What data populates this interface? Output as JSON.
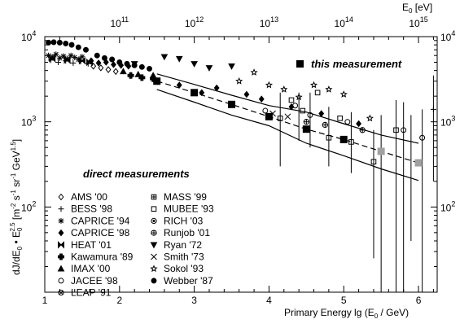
{
  "chart_data": {
    "type": "scatter",
    "title": "",
    "xlabel": "Primary Energy lg (E0 / GeV)",
    "xlabel_parts": {
      "prefix": "Primary Energy lg (E",
      "sub": "0",
      "suffix": " / GeV)"
    },
    "ylabel_parts": {
      "a": "dJ/dE",
      "a_sub": "0",
      "dot": " • E",
      "b_sub": "0",
      "b_sup": "2.5",
      "unit_open": " [m",
      "exp1": "-2",
      "mid1": " s",
      "exp2": "-1",
      "mid2": " sr",
      "exp3": "-1",
      "mid3": " GeV",
      "exp4": "1.5",
      "unit_close": "]"
    },
    "top_axis_label_parts": {
      "base": "E",
      "sub": "0",
      "unit": " [eV]"
    },
    "xlim": [
      1,
      6.25
    ],
    "ylim_log10": [
      1,
      4
    ],
    "y_scale": "log",
    "x_ticks": [
      "1",
      "2",
      "3",
      "4",
      "5",
      "6"
    ],
    "x_tick_values": [
      1,
      2,
      3,
      4,
      5,
      6
    ],
    "y_ticks": [
      {
        "base": "10",
        "exp": "4",
        "value": 4
      },
      {
        "base": "10",
        "exp": "3",
        "value": 3
      },
      {
        "base": "10",
        "exp": "2",
        "value": 2
      }
    ],
    "top_ticks": [
      {
        "base": "10",
        "exp": "11",
        "value": 2
      },
      {
        "base": "10",
        "exp": "12",
        "value": 3
      },
      {
        "base": "10",
        "exp": "13",
        "value": 4
      },
      {
        "base": "10",
        "exp": "14",
        "value": 5
      },
      {
        "base": "10",
        "exp": "15",
        "value": 6
      }
    ],
    "annotations": {
      "this_measurement": "this measurement",
      "direct_measurements": "direct measurements"
    },
    "legend_left": [
      {
        "label": "AMS '00",
        "marker": "diamond-open"
      },
      {
        "label": "BESS '98",
        "marker": "plus"
      },
      {
        "label": "CAPRICE '94",
        "marker": "asterisk"
      },
      {
        "label": "CAPRICE '98",
        "marker": "diamond-filled"
      },
      {
        "label": "HEAT '01",
        "marker": "bowtie"
      },
      {
        "label": "Kawamura '89",
        "marker": "cross-filled"
      },
      {
        "label": "IMAX '00",
        "marker": "triangle-up-filled"
      },
      {
        "label": "JACEE '98",
        "marker": "circle-open"
      },
      {
        "label": "LEAP '91",
        "marker": "circle-x"
      }
    ],
    "legend_right": [
      {
        "label": "MASS '99",
        "marker": "square-plus"
      },
      {
        "label": "MUBEE '93",
        "marker": "square-open"
      },
      {
        "label": "RICH '03",
        "marker": "circle-dot"
      },
      {
        "label": "Runjob '01",
        "marker": "circle-plus"
      },
      {
        "label": "Ryan '72",
        "marker": "triangle-down-filled"
      },
      {
        "label": "Smith '73",
        "marker": "x"
      },
      {
        "label": "Sokol '93",
        "marker": "star-open"
      },
      {
        "label": "Webber '87",
        "marker": "circle-filled"
      }
    ],
    "this_measurement_series": {
      "name": "this measurement",
      "marker": "square-filled",
      "points": [
        {
          "x": 2.5,
          "y": 3000
        },
        {
          "x": 3.0,
          "y": 2200
        },
        {
          "x": 3.5,
          "y": 1600
        },
        {
          "x": 4.0,
          "y": 1150
        },
        {
          "x": 4.5,
          "y": 820
        },
        {
          "x": 5.0,
          "y": 620
        }
      ],
      "gray_points": [
        {
          "x": 5.5,
          "y": 450
        },
        {
          "x": 6.0,
          "y": 330
        }
      ]
    },
    "band": {
      "upper": [
        [
          2.5,
          3650
        ],
        [
          3.0,
          2750
        ],
        [
          3.5,
          2050
        ],
        [
          4.0,
          1550
        ],
        [
          4.5,
          1300
        ],
        [
          5.0,
          950
        ],
        [
          5.5,
          700
        ],
        [
          6.0,
          560
        ]
      ],
      "central": [
        [
          2.5,
          3000
        ],
        [
          3.0,
          2200
        ],
        [
          3.5,
          1600
        ],
        [
          4.0,
          1150
        ],
        [
          4.5,
          820
        ],
        [
          5.0,
          620
        ],
        [
          5.5,
          450
        ],
        [
          6.0,
          330
        ]
      ],
      "lower": [
        [
          2.5,
          2400
        ],
        [
          3.0,
          1700
        ],
        [
          3.5,
          1200
        ],
        [
          4.0,
          900
        ],
        [
          4.5,
          560
        ],
        [
          5.0,
          400
        ],
        [
          5.5,
          280
        ],
        [
          6.0,
          205
        ]
      ]
    },
    "direct_points": [
      {
        "x": 1.05,
        "y": 8500,
        "marker": "circle-filled"
      },
      {
        "x": 1.12,
        "y": 8600,
        "marker": "circle-filled"
      },
      {
        "x": 1.2,
        "y": 8500,
        "marker": "circle-filled"
      },
      {
        "x": 1.28,
        "y": 8300,
        "marker": "circle-filled"
      },
      {
        "x": 1.36,
        "y": 8000,
        "marker": "circle-filled"
      },
      {
        "x": 1.45,
        "y": 7500,
        "marker": "circle-filled"
      },
      {
        "x": 1.55,
        "y": 7000,
        "marker": "circle-filled"
      },
      {
        "x": 1.05,
        "y": 6000,
        "marker": "asterisk"
      },
      {
        "x": 1.1,
        "y": 5800,
        "marker": "asterisk"
      },
      {
        "x": 1.15,
        "y": 6200,
        "marker": "asterisk"
      },
      {
        "x": 1.2,
        "y": 5600,
        "marker": "asterisk"
      },
      {
        "x": 1.25,
        "y": 5900,
        "marker": "asterisk"
      },
      {
        "x": 1.3,
        "y": 5500,
        "marker": "asterisk"
      },
      {
        "x": 1.35,
        "y": 6000,
        "marker": "asterisk"
      },
      {
        "x": 1.4,
        "y": 5700,
        "marker": "asterisk"
      },
      {
        "x": 1.45,
        "y": 5400,
        "marker": "asterisk"
      },
      {
        "x": 1.5,
        "y": 5800,
        "marker": "asterisk"
      },
      {
        "x": 1.08,
        "y": 5300,
        "marker": "plus"
      },
      {
        "x": 1.18,
        "y": 5000,
        "marker": "plus"
      },
      {
        "x": 1.28,
        "y": 5200,
        "marker": "plus"
      },
      {
        "x": 1.38,
        "y": 4900,
        "marker": "plus"
      },
      {
        "x": 1.48,
        "y": 5100,
        "marker": "plus"
      },
      {
        "x": 1.58,
        "y": 4800,
        "marker": "plus"
      },
      {
        "x": 1.1,
        "y": 5500,
        "marker": "bowtie"
      },
      {
        "x": 1.3,
        "y": 5300,
        "marker": "bowtie"
      },
      {
        "x": 1.5,
        "y": 5200,
        "marker": "bowtie"
      },
      {
        "x": 1.6,
        "y": 5000,
        "marker": "bowtie"
      },
      {
        "x": 1.62,
        "y": 5200,
        "marker": "diamond-filled"
      },
      {
        "x": 1.72,
        "y": 4900,
        "marker": "diamond-filled"
      },
      {
        "x": 1.82,
        "y": 5000,
        "marker": "diamond-filled"
      },
      {
        "x": 1.92,
        "y": 4700,
        "marker": "diamond-filled"
      },
      {
        "x": 2.02,
        "y": 4600,
        "marker": "diamond-filled"
      },
      {
        "x": 2.12,
        "y": 4500,
        "marker": "diamond-filled"
      },
      {
        "x": 1.65,
        "y": 4500,
        "marker": "diamond-open"
      },
      {
        "x": 1.75,
        "y": 4300,
        "marker": "diamond-open"
      },
      {
        "x": 1.85,
        "y": 4100,
        "marker": "diamond-open"
      },
      {
        "x": 1.95,
        "y": 3900,
        "marker": "diamond-open"
      },
      {
        "x": 1.7,
        "y": 6000,
        "marker": "circle-filled"
      },
      {
        "x": 1.8,
        "y": 5600,
        "marker": "circle-filled"
      },
      {
        "x": 1.9,
        "y": 5400,
        "marker": "circle-filled"
      },
      {
        "x": 2.0,
        "y": 5000,
        "marker": "circle-filled"
      },
      {
        "x": 2.1,
        "y": 4800,
        "marker": "circle-filled"
      },
      {
        "x": 2.2,
        "y": 4600,
        "marker": "circle-filled"
      },
      {
        "x": 2.3,
        "y": 4400,
        "marker": "circle-filled"
      },
      {
        "x": 2.4,
        "y": 4200,
        "marker": "circle-filled"
      },
      {
        "x": 2.15,
        "y": 3500,
        "marker": "cross-filled"
      },
      {
        "x": 2.3,
        "y": 3300,
        "marker": "cross-filled"
      },
      {
        "x": 2.45,
        "y": 3200,
        "marker": "cross-filled"
      },
      {
        "x": 2.05,
        "y": 3900,
        "marker": "triangle-up-filled"
      },
      {
        "x": 2.25,
        "y": 3600,
        "marker": "triangle-up-filled"
      },
      {
        "x": 2.45,
        "y": 3500,
        "marker": "triangle-up-filled"
      },
      {
        "x": 2.2,
        "y": 4800,
        "marker": "triangle-down-filled"
      },
      {
        "x": 2.6,
        "y": 5800,
        "marker": "triangle-down-filled"
      },
      {
        "x": 2.8,
        "y": 5500,
        "marker": "triangle-down-filled"
      },
      {
        "x": 3.0,
        "y": 4800,
        "marker": "triangle-down-filled"
      },
      {
        "x": 3.2,
        "y": 4300,
        "marker": "triangle-down-filled"
      },
      {
        "x": 3.5,
        "y": 4500,
        "marker": "triangle-down-filled"
      },
      {
        "x": 2.8,
        "y": 2700,
        "marker": "diamond-filled"
      },
      {
        "x": 3.1,
        "y": 2200,
        "marker": "diamond-filled"
      },
      {
        "x": 3.3,
        "y": 2500,
        "marker": "diamond-filled"
      },
      {
        "x": 3.7,
        "y": 2100,
        "marker": "diamond-filled"
      },
      {
        "x": 3.9,
        "y": 1850,
        "marker": "diamond-filled"
      },
      {
        "x": 4.3,
        "y": 1500,
        "marker": "diamond-filled"
      },
      {
        "x": 4.7,
        "y": 1250,
        "marker": "diamond-filled"
      },
      {
        "x": 5.2,
        "y": 950,
        "marker": "diamond-filled"
      },
      {
        "x": 3.6,
        "y": 3000,
        "marker": "star-open"
      },
      {
        "x": 3.8,
        "y": 3800,
        "marker": "star-open"
      },
      {
        "x": 4.0,
        "y": 2700,
        "marker": "star-open"
      },
      {
        "x": 4.2,
        "y": 2400,
        "marker": "star-open"
      },
      {
        "x": 4.4,
        "y": 1950,
        "marker": "star-open"
      },
      {
        "x": 4.6,
        "y": 2700,
        "marker": "star-open"
      },
      {
        "x": 4.8,
        "y": 2400,
        "marker": "star-open"
      },
      {
        "x": 5.0,
        "y": 2100,
        "marker": "star-open"
      },
      {
        "x": 5.35,
        "y": 1100,
        "marker": "star-open"
      },
      {
        "x": 4.15,
        "y": 1100,
        "marker": "square-open"
      },
      {
        "x": 4.3,
        "y": 1800,
        "marker": "square-open"
      },
      {
        "x": 4.45,
        "y": 1350,
        "marker": "square-open"
      },
      {
        "x": 4.65,
        "y": 2200,
        "marker": "square-open"
      },
      {
        "x": 4.8,
        "y": 650,
        "marker": "square-open"
      },
      {
        "x": 4.95,
        "y": 1100,
        "marker": "square-open"
      },
      {
        "x": 5.1,
        "y": 580,
        "marker": "square-open"
      },
      {
        "x": 5.4,
        "y": 340,
        "marker": "square-open"
      },
      {
        "x": 5.7,
        "y": 800,
        "marker": "square-open"
      },
      {
        "x": 3.95,
        "y": 1350,
        "marker": "circle-open"
      },
      {
        "x": 4.35,
        "y": 1550,
        "marker": "circle-open"
      },
      {
        "x": 4.55,
        "y": 1200,
        "marker": "circle-open"
      },
      {
        "x": 5.05,
        "y": 1000,
        "marker": "circle-open"
      },
      {
        "x": 5.8,
        "y": 800,
        "marker": "circle-open"
      },
      {
        "x": 6.05,
        "y": 650,
        "marker": "circle-open"
      },
      {
        "x": 4.05,
        "y": 1250,
        "marker": "x"
      },
      {
        "x": 4.25,
        "y": 1150,
        "marker": "x"
      },
      {
        "x": 4.5,
        "y": 1000,
        "marker": "circle-plus"
      },
      {
        "x": 4.75,
        "y": 920,
        "marker": "circle-plus"
      },
      {
        "x": 5.25,
        "y": 800,
        "marker": "circle-plus"
      },
      {
        "x": 6.2,
        "y": 1400,
        "marker": "plus"
      }
    ],
    "error_bars": [
      {
        "x": 4.15,
        "lo": 300,
        "hi": 2200
      },
      {
        "x": 4.4,
        "lo": 600,
        "hi": 2200
      },
      {
        "x": 4.55,
        "lo": 500,
        "hi": 2200
      },
      {
        "x": 4.8,
        "lo": 300,
        "hi": 1500
      },
      {
        "x": 5.1,
        "lo": 250,
        "hi": 1300
      },
      {
        "x": 5.4,
        "lo": 25,
        "hi": 800
      },
      {
        "x": 5.5,
        "lo": 10,
        "hi": 1200
      },
      {
        "x": 5.7,
        "lo": 10,
        "hi": 1800
      },
      {
        "x": 5.8,
        "lo": 10,
        "hi": 1700
      },
      {
        "x": 5.9,
        "lo": 40,
        "hi": 1200
      },
      {
        "x": 6.05,
        "lo": 10,
        "hi": 1400
      },
      {
        "x": 6.2,
        "lo": 200,
        "hi": 3500
      }
    ]
  }
}
